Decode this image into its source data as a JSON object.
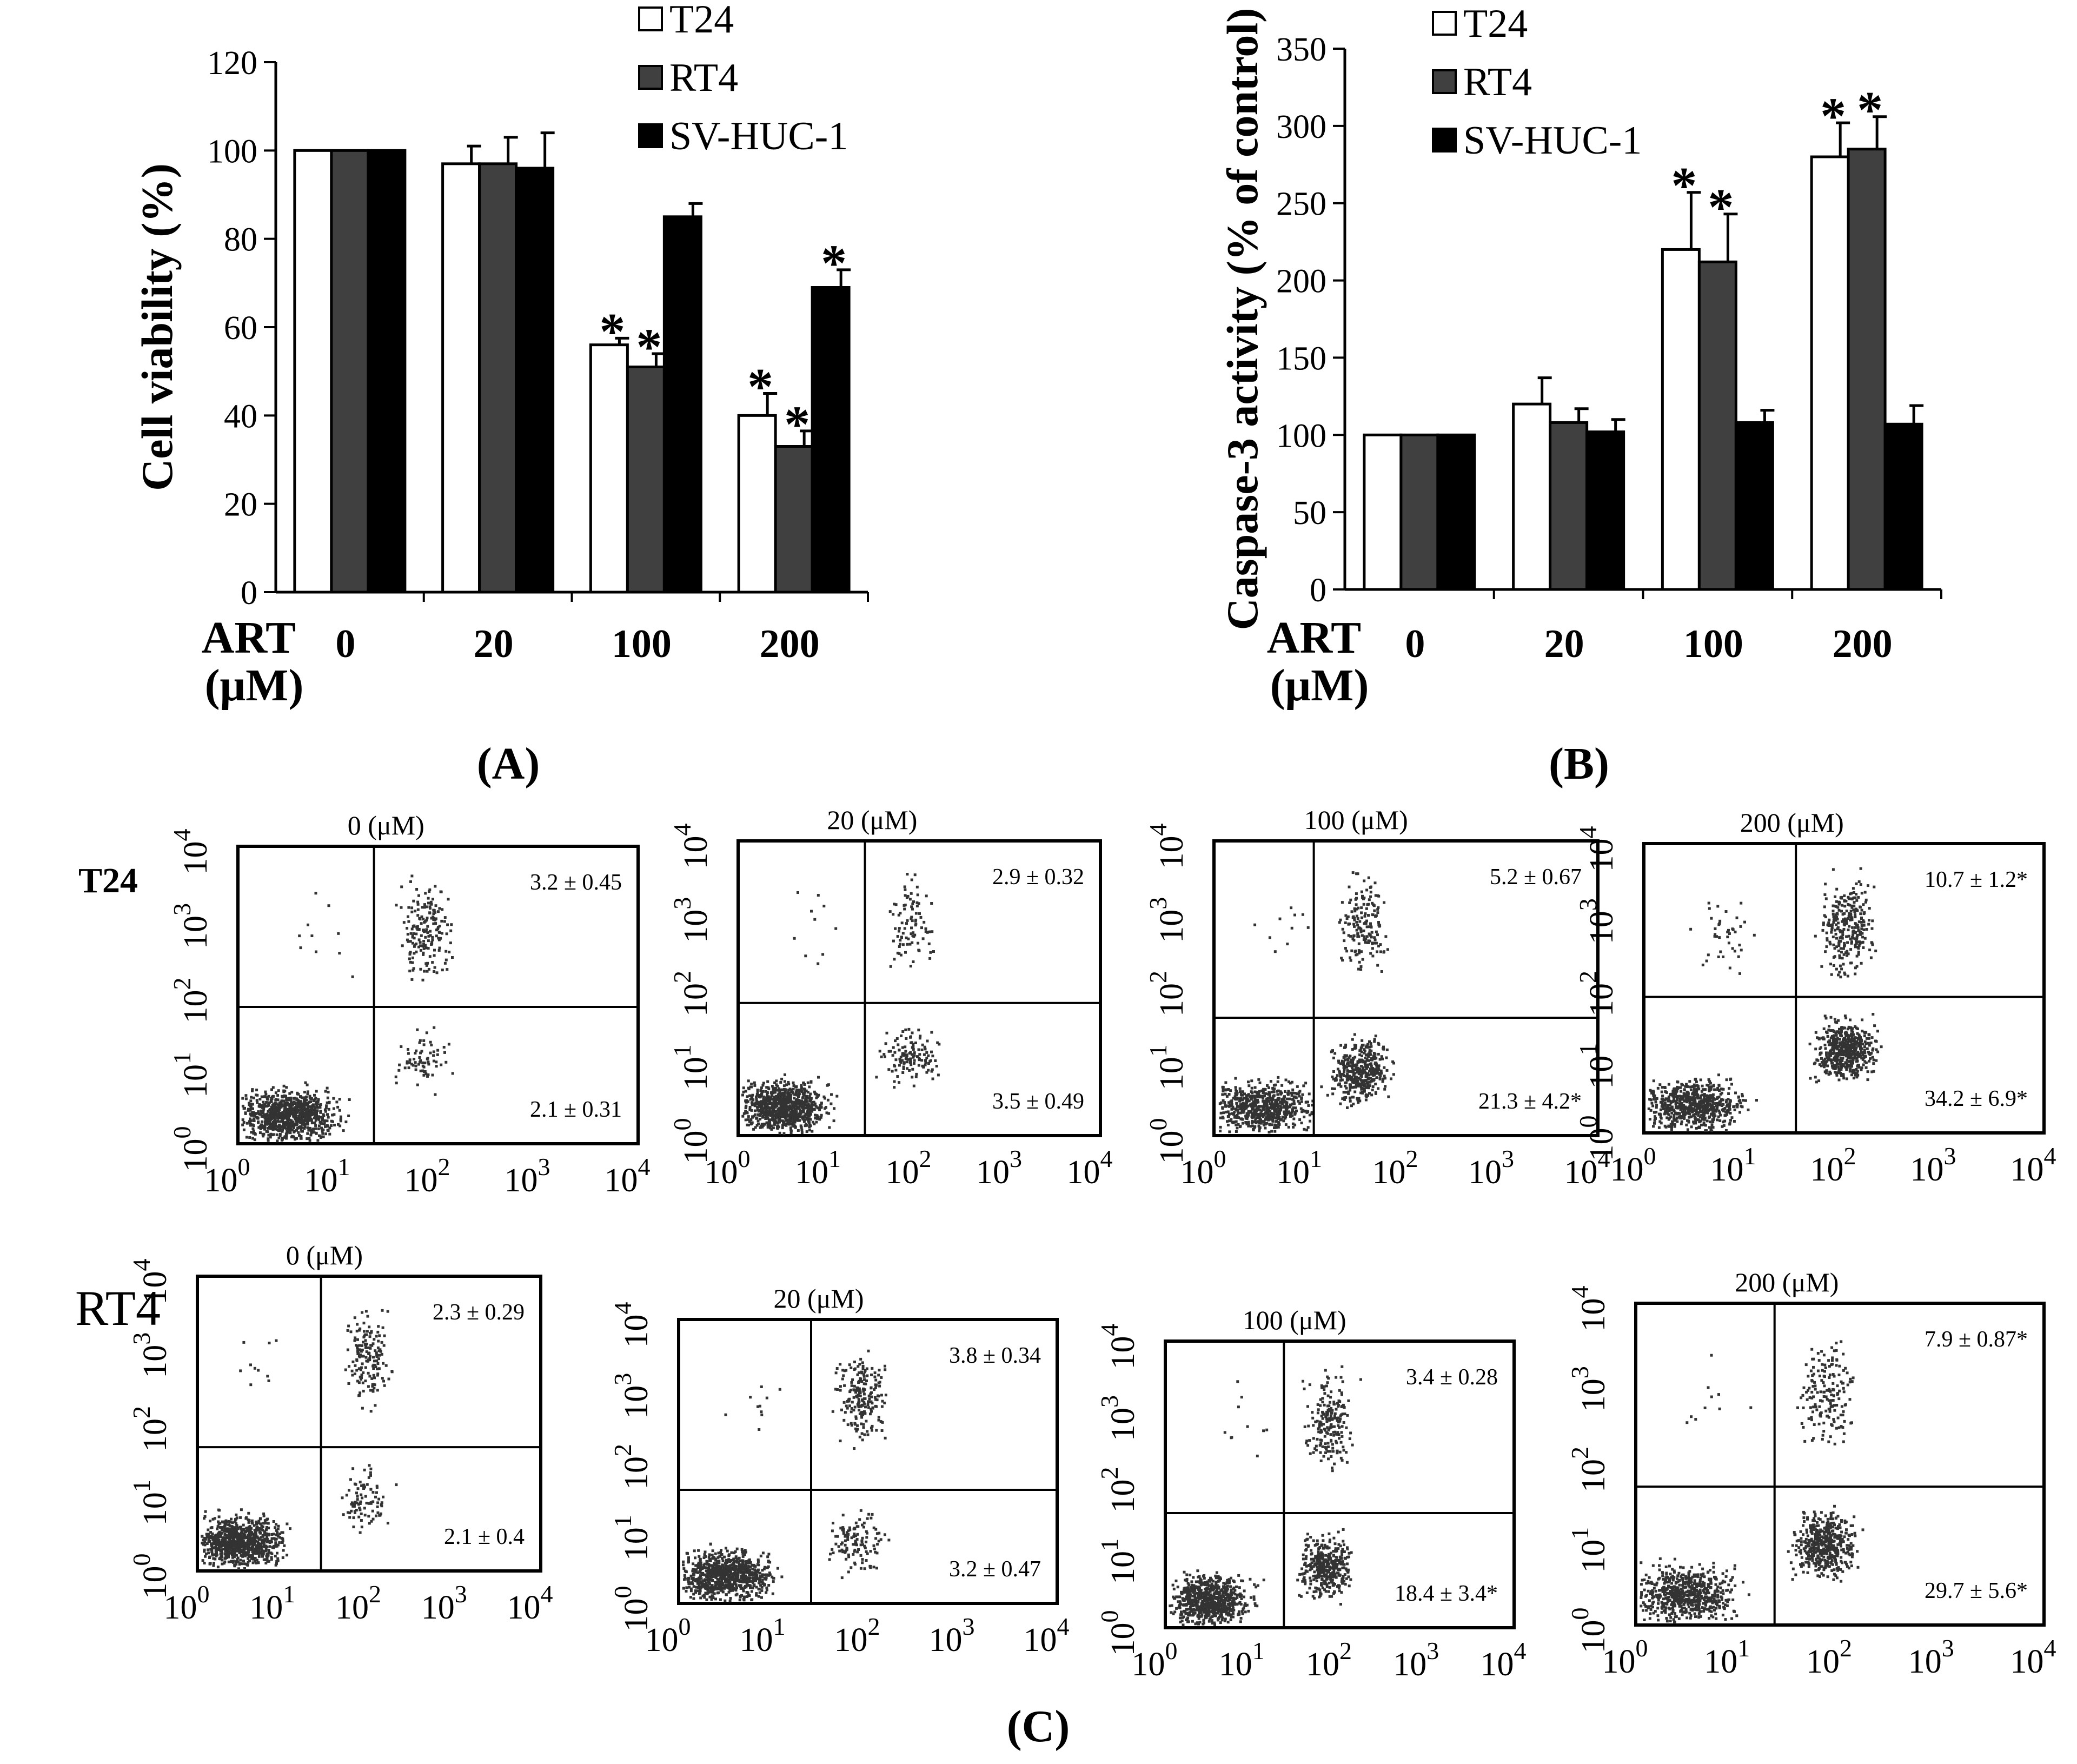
{
  "panel_labels": {
    "a": "(A)",
    "b": "(B)",
    "c": "(C)"
  },
  "chart_data": [
    {
      "id": "A",
      "type": "bar",
      "ylabel": "Cell viability (%)",
      "xlabel_line1": "ART",
      "xlabel_line2": "(μM)",
      "categories": [
        "0",
        "20",
        "100",
        "200"
      ],
      "ylim": [
        0,
        120
      ],
      "yticks": [
        0,
        20,
        40,
        60,
        80,
        100,
        120
      ],
      "legend": "top-right",
      "series": [
        {
          "name": "T24",
          "color": "#ffffff",
          "values": [
            100,
            97,
            56,
            40
          ],
          "errors": [
            0,
            4,
            1.5,
            5
          ],
          "sig": [
            false,
            false,
            true,
            true
          ]
        },
        {
          "name": "RT4",
          "color": "#404040",
          "values": [
            100,
            97,
            51,
            33
          ],
          "errors": [
            0,
            6,
            3,
            3.5
          ],
          "sig": [
            false,
            false,
            true,
            true
          ]
        },
        {
          "name": "SV-HUC-1",
          "color": "#000000",
          "values": [
            100,
            96,
            85,
            69
          ],
          "errors": [
            0,
            8,
            3,
            4
          ],
          "sig": [
            false,
            false,
            false,
            true
          ]
        }
      ],
      "sig_marker": "*"
    },
    {
      "id": "B",
      "type": "bar",
      "ylabel": "Caspase-3 activity (% of control)",
      "xlabel_line1": "ART",
      "xlabel_line2": "(μM)",
      "categories": [
        "0",
        "20",
        "100",
        "200"
      ],
      "ylim": [
        0,
        350
      ],
      "yticks": [
        0,
        50,
        100,
        150,
        200,
        250,
        300,
        350
      ],
      "legend": "top-right",
      "series": [
        {
          "name": "T24",
          "color": "#ffffff",
          "values": [
            100,
            120,
            220,
            280
          ],
          "errors": [
            0,
            17,
            37,
            22
          ],
          "sig": [
            false,
            false,
            true,
            true
          ]
        },
        {
          "name": "RT4",
          "color": "#404040",
          "values": [
            100,
            108,
            212,
            285
          ],
          "errors": [
            0,
            9,
            31,
            21
          ],
          "sig": [
            false,
            false,
            true,
            true
          ]
        },
        {
          "name": "SV-HUC-1",
          "color": "#000000",
          "values": [
            100,
            102,
            108,
            107
          ],
          "errors": [
            0,
            8,
            8,
            12
          ],
          "sig": [
            false,
            false,
            false,
            false
          ]
        }
      ],
      "sig_marker": "*"
    },
    {
      "id": "C",
      "type": "scatter",
      "description_rows": [
        {
          "label": "T24",
          "panels": [
            {
              "title": "0 (μM)",
              "upper_right": "3.2  ±  0.45",
              "lower_right": "2.1  ±  0.31"
            },
            {
              "title": "20 (μM)",
              "upper_right": "2.9  ±  0.32",
              "lower_right": "3.5  ±  0.49"
            },
            {
              "title": "100 (μM)",
              "upper_right": "5.2  ±  0.67",
              "lower_right": "21.3  ±  4.2*"
            },
            {
              "title": "200 (μM)",
              "upper_right": "10.7  ±  1.2*",
              "lower_right": "34.2  ±  6.9*"
            }
          ]
        },
        {
          "label": "RT4",
          "panels": [
            {
              "title": "0 (μM)",
              "upper_right": "2.3  ±  0.29",
              "lower_right": "2.1  ±  0.4"
            },
            {
              "title": "20 (μM)",
              "upper_right": "3.8  ±  0.34",
              "lower_right": "3.2  ±  0.47"
            },
            {
              "title": "100 (μM)",
              "upper_right": "3.4  ±  0.28",
              "lower_right": "18.4  ±  3.4*"
            },
            {
              "title": "200 (μM)",
              "upper_right": "7.9  ±  0.87*",
              "lower_right": "29.7  ±  5.6*"
            }
          ]
        }
      ],
      "axis_base": "10",
      "axis_exponents": [
        "0",
        "1",
        "2",
        "3",
        "4"
      ]
    }
  ]
}
